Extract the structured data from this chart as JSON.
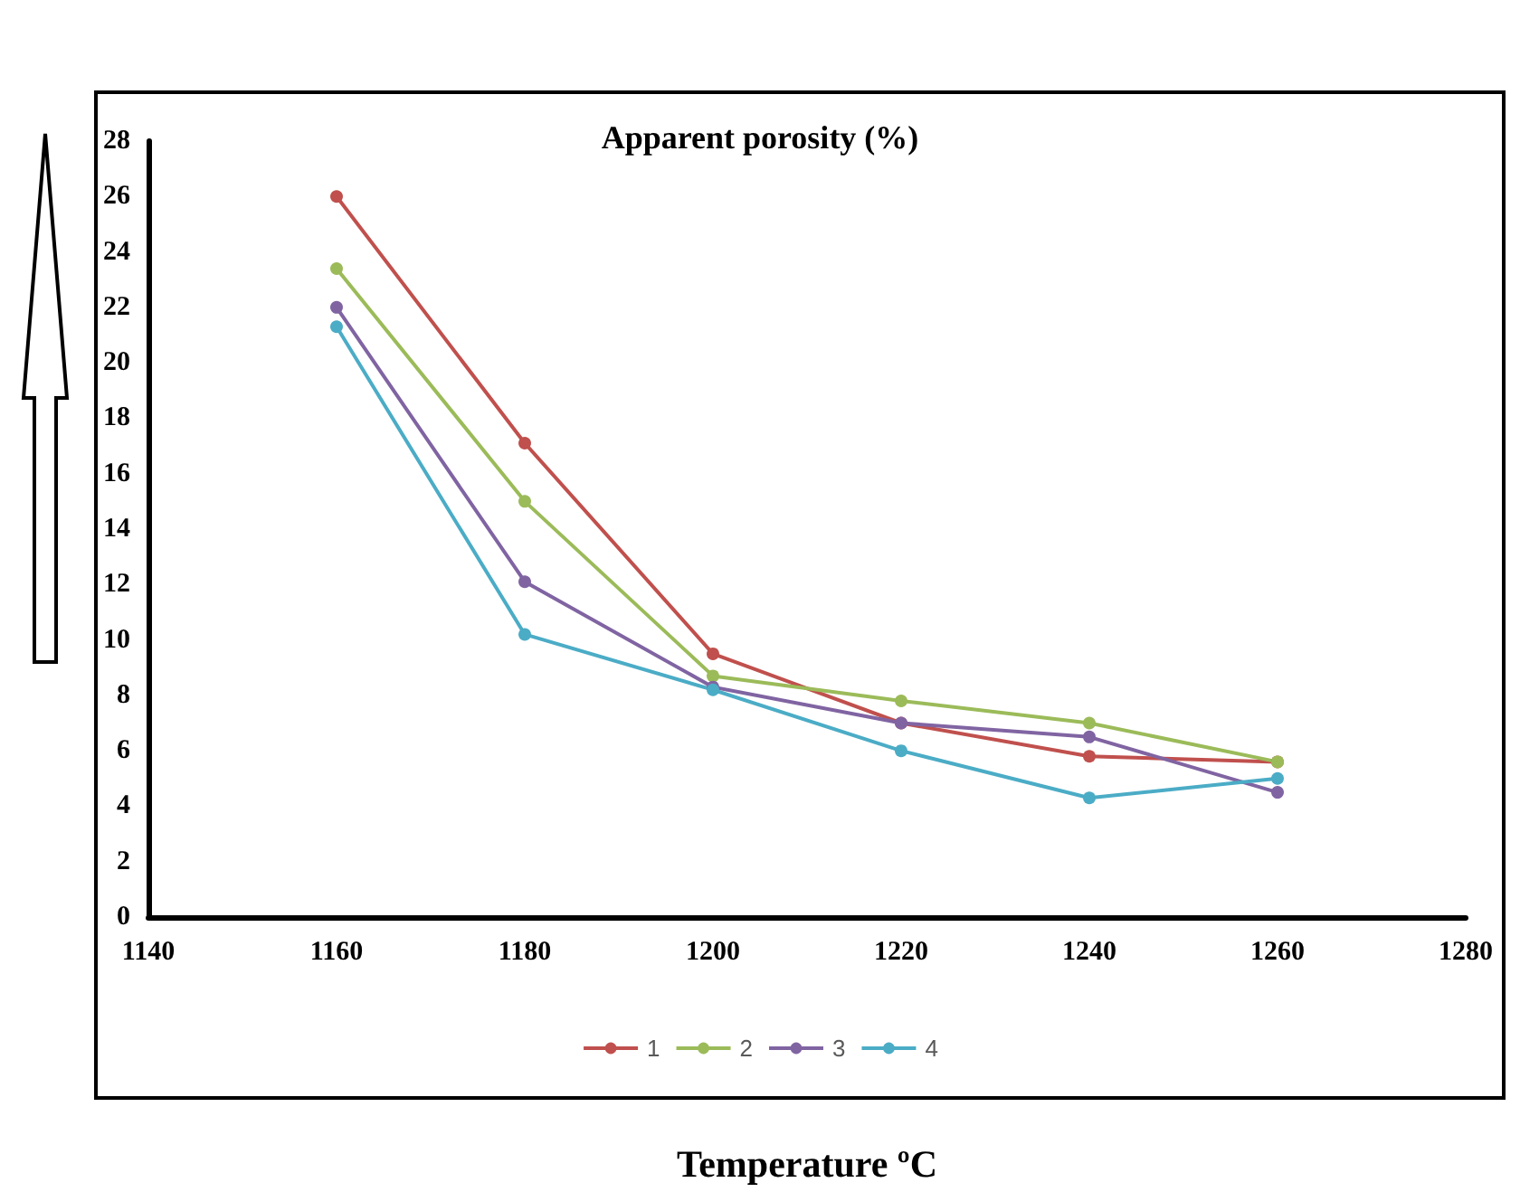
{
  "chart_data": {
    "type": "line",
    "title": "Apparent porosity (%)",
    "xlabel": "Temperature ºC",
    "x": [
      1160,
      1180,
      1200,
      1220,
      1240,
      1260
    ],
    "series": [
      {
        "name": "1",
        "color": "#c0504d",
        "values": [
          26,
          17.1,
          9.5,
          7,
          5.8,
          5.6
        ]
      },
      {
        "name": "2",
        "color": "#9bbb59",
        "values": [
          23.4,
          15,
          8.7,
          7.8,
          7,
          5.6
        ]
      },
      {
        "name": "3",
        "color": "#8064a2",
        "values": [
          22,
          12.1,
          8.3,
          7,
          6.5,
          4.5
        ]
      },
      {
        "name": "4",
        "color": "#4bacc6",
        "values": [
          21.3,
          10.2,
          8.2,
          6,
          4.3,
          5
        ]
      }
    ],
    "xlim": [
      1140,
      1280
    ],
    "xticks": [
      1140,
      1160,
      1180,
      1200,
      1220,
      1240,
      1260,
      1280
    ],
    "ylim": [
      0,
      28
    ],
    "yticks": [
      0,
      2,
      4,
      6,
      8,
      10,
      12,
      14,
      16,
      18,
      20,
      22,
      24,
      26,
      28
    ],
    "grid": false,
    "legend": "bottom",
    "marker": "circle",
    "line_style": "solid"
  }
}
